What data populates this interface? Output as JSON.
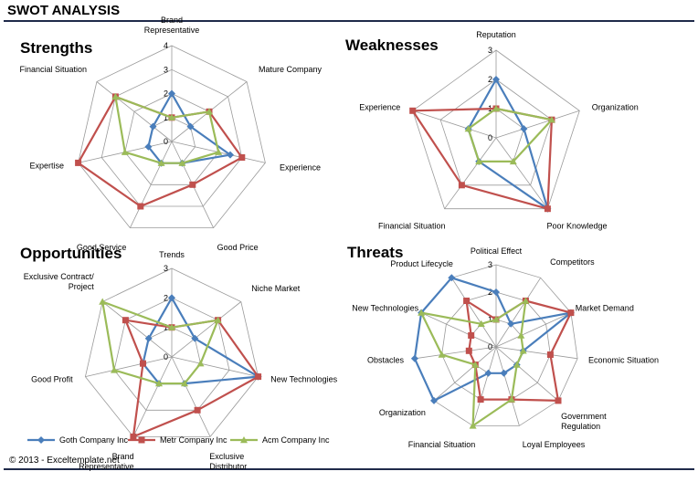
{
  "page": {
    "title": "SWOT ANALYSIS",
    "copyright": "© 2013 - Exceltemplate.net"
  },
  "series_colors": [
    "#4a7ebb",
    "#c0504d",
    "#9bbb59"
  ],
  "legend": [
    "Goth Company Inc",
    "Metr Company Inc",
    "Acm Company Inc"
  ],
  "chart_data": [
    {
      "type": "radar",
      "title": "Strengths",
      "categories": [
        [
          "Brand",
          "Representative"
        ],
        [
          "Mature Company"
        ],
        [
          "Experience"
        ],
        [
          "Good Price"
        ],
        [
          "Good Service"
        ],
        [
          "Expertise"
        ],
        [
          "Financial Situation"
        ]
      ],
      "ticks": [
        "0",
        "1",
        "2",
        "3",
        "4"
      ],
      "rmax": 4,
      "series": [
        {
          "name": "Goth Company Inc",
          "values": [
            2,
            1,
            2.5,
            1,
            1,
            1,
            1
          ]
        },
        {
          "name": "Metr Company Inc",
          "values": [
            1,
            2,
            3,
            2,
            3,
            4,
            3
          ]
        },
        {
          "name": "Acm Company Inc",
          "values": [
            1,
            2,
            2,
            1,
            1,
            2,
            3
          ]
        }
      ]
    },
    {
      "type": "radar",
      "title": "Weaknesses",
      "categories": [
        [
          "Reputation"
        ],
        [
          "Organization"
        ],
        [
          "Poor Knowledge"
        ],
        [
          "Financial Situation"
        ],
        [
          "Experience"
        ]
      ],
      "ticks": [
        "0",
        "1",
        "2",
        "3"
      ],
      "rmax": 3,
      "series": [
        {
          "name": "Goth Company Inc",
          "values": [
            2,
            1,
            3,
            1,
            1
          ]
        },
        {
          "name": "Metr Company Inc",
          "values": [
            1,
            2,
            3,
            2,
            3
          ]
        },
        {
          "name": "Acm Company Inc",
          "values": [
            1,
            2,
            1,
            1,
            1
          ]
        }
      ]
    },
    {
      "type": "radar",
      "title": "Opportunities",
      "categories": [
        [
          "Trends"
        ],
        [
          "Niche Market"
        ],
        [
          "New Technologies"
        ],
        [
          "Exclusive",
          "Distributor"
        ],
        [
          "Brand",
          "Representative"
        ],
        [
          "Good Profit"
        ],
        [
          "Exclusive Contract/",
          "Project"
        ]
      ],
      "ticks": [
        "0",
        "1",
        "2",
        "3"
      ],
      "rmax": 3,
      "series": [
        {
          "name": "Goth Company Inc",
          "values": [
            2,
            1,
            3,
            1,
            1,
            1,
            1
          ]
        },
        {
          "name": "Metr Company Inc",
          "values": [
            1,
            2,
            3,
            2,
            3,
            1,
            2
          ]
        },
        {
          "name": "Acm Company Inc",
          "values": [
            1,
            2,
            1,
            1,
            1,
            2,
            3
          ]
        }
      ]
    },
    {
      "type": "radar",
      "title": "Threats",
      "categories": [
        [
          "Political Effect"
        ],
        [
          "Competitors"
        ],
        [
          "Market Demand"
        ],
        [
          "Economic Situation"
        ],
        [
          "Government",
          "Regulation"
        ],
        [
          "Loyal Employees"
        ],
        [
          "Financial Situation"
        ],
        [
          "Organization"
        ],
        [
          "Obstacles"
        ],
        [
          "New Technologies"
        ],
        [
          "Product Lifecycle"
        ]
      ],
      "ticks": [
        "0",
        "1",
        "2",
        "3"
      ],
      "rmax": 3,
      "series": [
        {
          "name": "Goth Company Inc",
          "values": [
            2,
            1,
            3,
            1,
            1,
            1,
            1,
            3,
            3,
            3,
            3
          ]
        },
        {
          "name": "Metr Company Inc",
          "values": [
            1,
            2,
            3,
            2,
            3,
            2,
            2,
            1,
            1,
            1,
            2
          ]
        },
        {
          "name": "Acm Company Inc",
          "values": [
            1,
            2,
            1,
            1,
            1,
            2,
            3,
            1,
            2,
            3,
            1
          ]
        }
      ]
    }
  ]
}
